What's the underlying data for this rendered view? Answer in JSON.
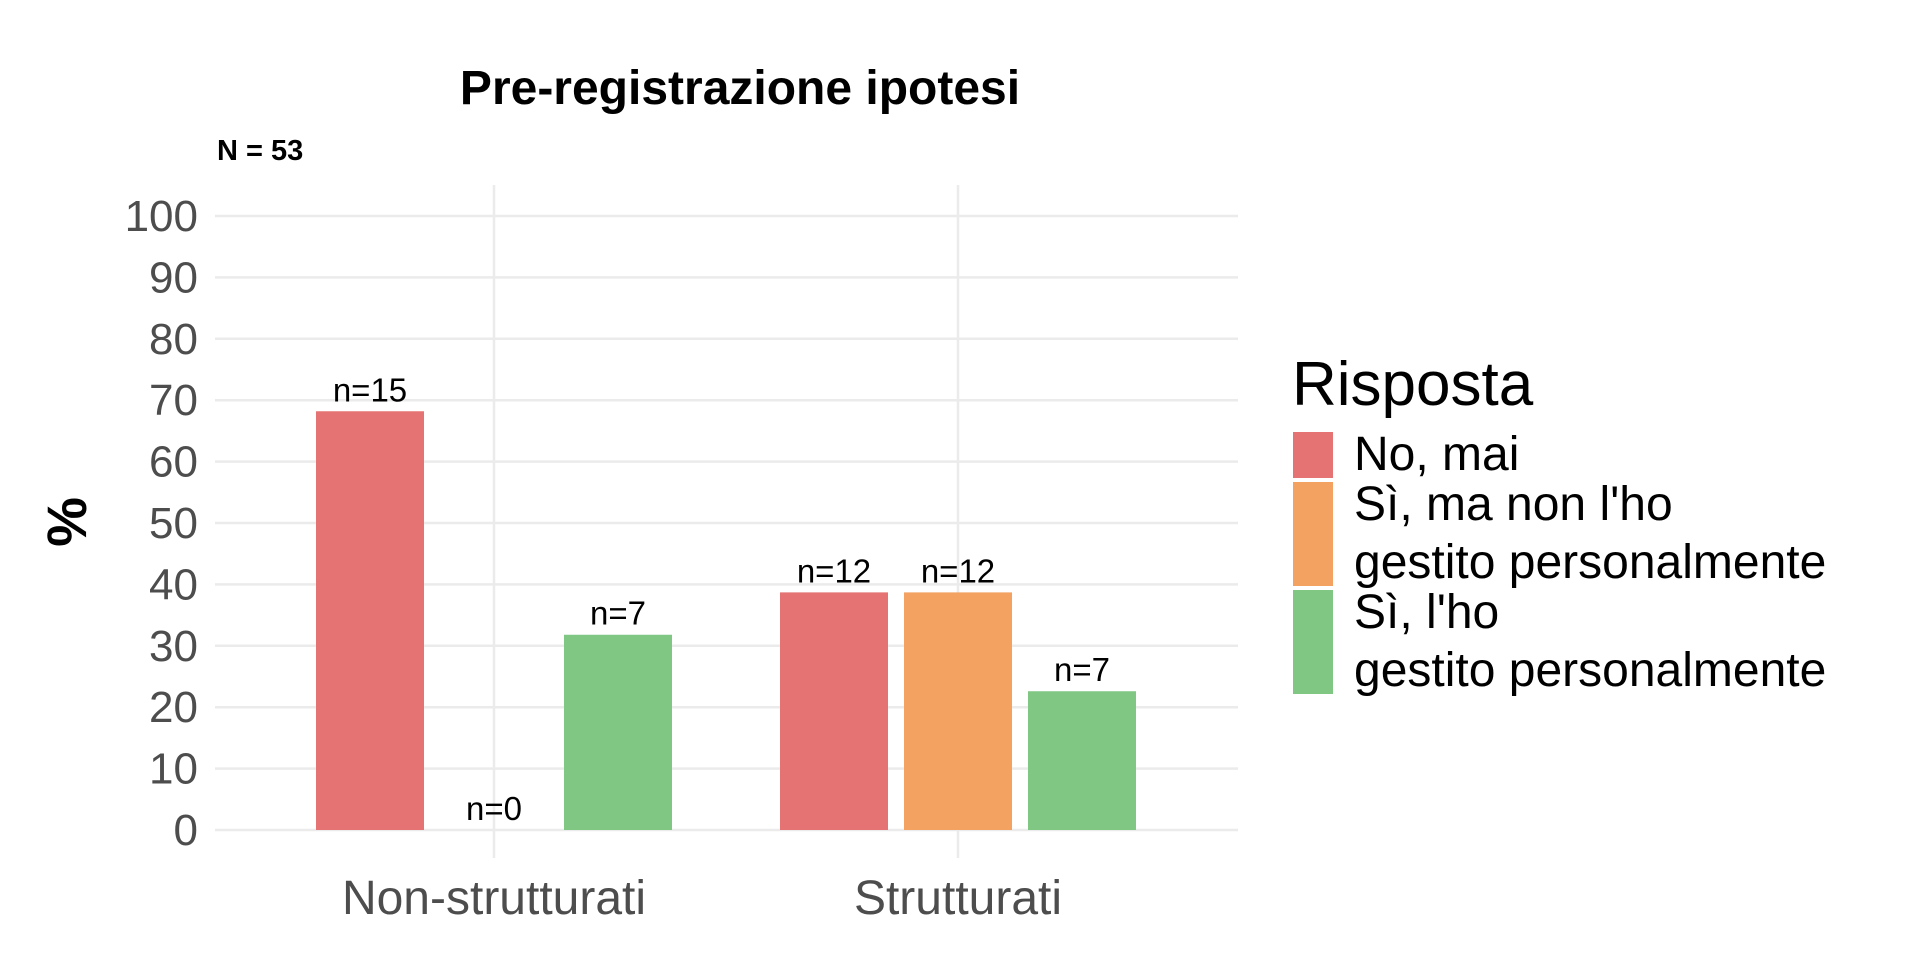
{
  "chart_data": {
    "type": "bar",
    "title": "Pre-registrazione ipotesi",
    "subtitle": "N = 53",
    "xlabel": "",
    "ylabel": "%",
    "ylim": [
      0,
      100
    ],
    "yticks": [
      "0",
      "10",
      "20",
      "30",
      "40",
      "50",
      "60",
      "70",
      "80",
      "90",
      "100"
    ],
    "categories": [
      "Non-strutturati",
      "Strutturati"
    ],
    "series": [
      {
        "name": "No, mai",
        "color": "#E57373",
        "values": [
          68.2,
          38.7
        ],
        "labels": [
          "n=15",
          "n=12"
        ]
      },
      {
        "name": "Sì, ma non l'ho gestito personalmente",
        "color": "#F4A261",
        "values": [
          0,
          38.7
        ],
        "labels": [
          "n=0",
          "n=12"
        ]
      },
      {
        "name": "Sì, l'ho gestito personalmente",
        "color": "#81C784",
        "values": [
          31.8,
          22.6
        ],
        "labels": [
          "n=7",
          "n=7"
        ]
      }
    ],
    "legend": {
      "title": "Risposta",
      "position": "right",
      "entries": [
        {
          "lines": [
            "No, mai"
          ]
        },
        {
          "lines": [
            "Sì, ma non l'ho",
            "gestito personalmente"
          ]
        },
        {
          "lines": [
            "Sì, l'ho",
            "gestito personalmente"
          ]
        }
      ]
    },
    "grid": true
  }
}
